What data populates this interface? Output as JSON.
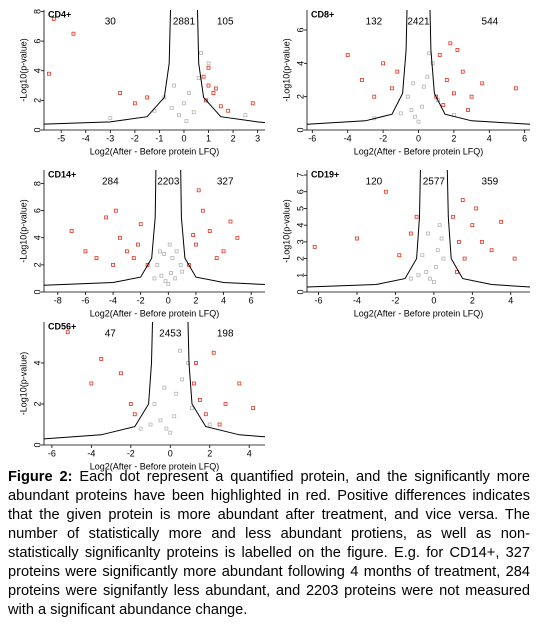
{
  "chart_data": [
    {
      "type": "scatter",
      "title": "CD4+",
      "xlabel": "Log2(After - Before protein LFQ)",
      "ylabel": "-Log10(p-value)",
      "annotations": [
        30,
        2881,
        105
      ],
      "xlim": [
        -5.7,
        3.3
      ],
      "ylim": [
        0,
        8.1
      ],
      "xticks": [
        -5,
        -4,
        -3,
        -2,
        -1,
        0,
        1,
        2,
        3
      ],
      "yticks": [
        0,
        2,
        4,
        6,
        8
      ],
      "series": [
        {
          "color": "#b4b4b4",
          "x": [
            -0.5,
            0.2,
            -0.2,
            0.6,
            -0.8,
            0.4,
            1.0,
            -1.2,
            0.9,
            2.5,
            -3.0,
            0.1,
            -0.4,
            0.7,
            0.0
          ],
          "values": [
            1.5,
            2.5,
            1.0,
            3.5,
            2.2,
            1.2,
            4.5,
            1.3,
            2.0,
            1.0,
            0.8,
            0.6,
            3.0,
            5.2,
            1.8
          ]
        },
        {
          "color": "#e0301e",
          "x": [
            -5.3,
            -4.5,
            -5.5,
            -2.6,
            -2.0,
            -1.5,
            1.0,
            1.2,
            0.9,
            1.5,
            2.8,
            1.8,
            1.0,
            0.8,
            1.3
          ],
          "values": [
            7.5,
            6.5,
            3.8,
            2.5,
            1.8,
            2.2,
            3.0,
            2.5,
            2.0,
            1.6,
            1.8,
            1.3,
            4.2,
            3.6,
            2.8
          ]
        }
      ],
      "curves": [
        {
          "x": [
            -5.7,
            -3.0,
            -1.5,
            -0.8,
            -0.6,
            -0.55
          ],
          "values": [
            0.4,
            0.55,
            0.9,
            2.2,
            4.5,
            8.1
          ]
        },
        {
          "x": [
            0.55,
            0.6,
            0.8,
            1.5,
            3.0,
            3.3
          ],
          "values": [
            8.1,
            4.5,
            2.2,
            0.9,
            0.55,
            0.5
          ]
        }
      ]
    },
    {
      "type": "scatter",
      "title": "CD8+",
      "xlabel": "Log2(After - Before protein LFQ)",
      "ylabel": "-Log10(p-value)",
      "annotations": [
        132,
        2421,
        544
      ],
      "xlim": [
        -6.3,
        6.3
      ],
      "ylim": [
        0,
        7.2
      ],
      "xticks": [
        -6,
        -4,
        -2,
        0,
        2,
        4,
        6
      ],
      "yticks": [
        0,
        2,
        4,
        6
      ],
      "series": [
        {
          "color": "#b4b4b4",
          "x": [
            -0.4,
            0.3,
            -0.2,
            0.5,
            -0.6,
            0.2,
            0.8,
            -1.0,
            1.1,
            2.0,
            -2.5,
            0.0,
            -0.3,
            0.6
          ],
          "values": [
            1.2,
            2.6,
            0.8,
            3.2,
            2.0,
            1.4,
            4.0,
            1.0,
            1.8,
            0.9,
            0.7,
            0.5,
            2.8,
            4.6
          ]
        },
        {
          "color": "#e0301e",
          "x": [
            -4.0,
            -3.2,
            -2.0,
            -1.5,
            -2.5,
            -1.2,
            1.2,
            1.6,
            2.0,
            2.5,
            3.0,
            1.4,
            2.2,
            3.6,
            5.5,
            1.8,
            2.8,
            1.0
          ],
          "values": [
            4.5,
            3.0,
            4.0,
            2.5,
            2.0,
            3.5,
            4.5,
            3.0,
            2.2,
            3.5,
            2.0,
            1.5,
            4.8,
            2.8,
            2.5,
            5.2,
            1.2,
            2.0
          ]
        }
      ],
      "curves": [
        {
          "x": [
            -6.3,
            -3.0,
            -1.5,
            -0.9,
            -0.7,
            -0.65
          ],
          "values": [
            0.35,
            0.55,
            0.95,
            2.2,
            4.8,
            7.2
          ]
        },
        {
          "x": [
            0.65,
            0.7,
            0.9,
            1.5,
            3.0,
            6.3
          ],
          "values": [
            7.2,
            4.8,
            2.2,
            0.95,
            0.55,
            0.35
          ]
        }
      ]
    },
    {
      "type": "scatter",
      "title": "CD14+",
      "xlabel": "Log2(After - Before protein LFQ)",
      "ylabel": "-Log10(p-value)",
      "annotations": [
        284,
        2203,
        327
      ],
      "xlim": [
        -9,
        7
      ],
      "ylim": [
        0,
        9
      ],
      "xticks": [
        -8,
        -6,
        -4,
        -2,
        0,
        2,
        4,
        6
      ],
      "yticks": [
        0,
        2,
        4,
        6,
        8
      ],
      "series": [
        {
          "color": "#b4b4b4",
          "x": [
            -0.5,
            0.3,
            -0.2,
            0.6,
            -0.8,
            0.2,
            0.9,
            -1.0,
            1.0,
            0.0,
            -0.3,
            0.5,
            -0.6,
            0.1
          ],
          "values": [
            1.2,
            2.5,
            0.8,
            3.0,
            2.0,
            1.4,
            2.0,
            1.0,
            1.5,
            0.6,
            2.8,
            1.0,
            3.0,
            3.5
          ]
        },
        {
          "color": "#e0301e",
          "x": [
            -7.0,
            -6.0,
            -4.5,
            -3.5,
            -3.0,
            -2.5,
            -2.0,
            -1.5,
            -4.0,
            -5.2,
            -3.8,
            -2.2,
            1.5,
            2.0,
            2.5,
            3.0,
            4.0,
            4.5,
            1.8,
            3.5,
            2.2,
            5.0
          ],
          "values": [
            4.5,
            3.0,
            5.5,
            4.0,
            3.0,
            2.5,
            5.0,
            2.0,
            2.0,
            2.5,
            6.0,
            3.5,
            2.0,
            3.5,
            6.0,
            4.5,
            3.0,
            5.2,
            4.2,
            2.5,
            7.5,
            4.0
          ]
        }
      ],
      "curves": [
        {
          "x": [
            -9,
            -4.0,
            -2.0,
            -1.2,
            -0.95,
            -0.9
          ],
          "values": [
            0.5,
            0.7,
            1.1,
            2.5,
            5.5,
            9
          ]
        },
        {
          "x": [
            0.9,
            0.95,
            1.2,
            2.0,
            4.0,
            7.0
          ],
          "values": [
            9,
            5.5,
            2.5,
            1.1,
            0.7,
            0.55
          ]
        }
      ]
    },
    {
      "type": "scatter",
      "title": "CD19+",
      "xlabel": "Log2(After - Before protein LFQ)",
      "ylabel": "-Log10(p-value)",
      "annotations": [
        120,
        2577,
        359
      ],
      "xlim": [
        -6.6,
        5
      ],
      "ylim": [
        0,
        7.3
      ],
      "xticks": [
        -6,
        -4,
        -2,
        0,
        2,
        4
      ],
      "yticks": [
        0,
        1,
        2,
        3,
        4,
        5,
        6,
        7
      ],
      "series": [
        {
          "color": "#b4b4b4",
          "x": [
            -0.4,
            0.2,
            -0.2,
            0.4,
            -0.6,
            0.1,
            0.5,
            -0.8,
            0.0,
            -0.3,
            0.3,
            -1.2
          ],
          "values": [
            1.2,
            2.5,
            0.8,
            3.2,
            2.2,
            1.5,
            2.0,
            1.0,
            0.6,
            3.5,
            4.0,
            0.8
          ]
        },
        {
          "color": "#e0301e",
          "x": [
            -6.2,
            -4.0,
            -2.5,
            -1.2,
            -0.9,
            -1.8,
            1.0,
            1.3,
            1.6,
            2.0,
            2.5,
            3.0,
            1.2,
            2.2,
            4.2,
            1.5,
            3.5
          ],
          "values": [
            2.7,
            3.2,
            6.0,
            3.5,
            4.5,
            2.2,
            4.5,
            3.0,
            2.0,
            4.0,
            3.0,
            2.5,
            1.2,
            5.0,
            2.0,
            5.5,
            4.2
          ]
        }
      ],
      "curves": [
        {
          "x": [
            -6.6,
            -3.0,
            -1.5,
            -0.9,
            -0.75,
            -0.7
          ],
          "values": [
            0.3,
            0.45,
            0.8,
            2.0,
            4.5,
            7.3
          ]
        },
        {
          "x": [
            0.7,
            0.75,
            0.9,
            1.5,
            3.0,
            5.0
          ],
          "values": [
            7.3,
            4.5,
            2.0,
            0.8,
            0.45,
            0.3
          ]
        }
      ]
    },
    {
      "type": "scatter",
      "title": "CD56+",
      "xlabel": "Log2(After - Before protein LFQ)",
      "ylabel": "-Log10(p-value)",
      "annotations": [
        47,
        2453,
        198
      ],
      "xlim": [
        -6.4,
        4.8
      ],
      "ylim": [
        0,
        6
      ],
      "xticks": [
        -6,
        -4,
        -2,
        0,
        2,
        4
      ],
      "yticks": [
        0,
        2,
        4
      ],
      "series": [
        {
          "color": "#b4b4b4",
          "x": [
            -0.5,
            0.3,
            -0.2,
            0.6,
            -0.8,
            0.2,
            0.9,
            -1.0,
            1.1,
            0.0,
            -0.3,
            0.5,
            -1.5,
            2.0
          ],
          "values": [
            1.2,
            2.5,
            0.8,
            3.2,
            2.0,
            1.4,
            4.0,
            1.0,
            1.8,
            0.6,
            2.8,
            4.6,
            0.8,
            1.0
          ]
        },
        {
          "color": "#e0301e",
          "x": [
            -5.2,
            -3.5,
            -2.5,
            -2.0,
            -1.8,
            -4.0,
            1.2,
            1.5,
            1.8,
            2.2,
            2.8,
            3.5,
            1.3,
            2.5,
            4.2
          ],
          "values": [
            5.5,
            4.2,
            3.5,
            2.0,
            1.5,
            3.0,
            3.0,
            2.2,
            1.5,
            4.5,
            2.0,
            3.0,
            4.0,
            1.0,
            1.8
          ]
        }
      ],
      "curves": [
        {
          "x": [
            -6.4,
            -3.5,
            -1.8,
            -1.1,
            -0.95,
            -0.9
          ],
          "values": [
            0.3,
            0.5,
            0.9,
            2.0,
            4.0,
            6
          ]
        },
        {
          "x": [
            0.9,
            0.95,
            1.1,
            1.8,
            3.5,
            4.8
          ],
          "values": [
            6,
            4.0,
            2.0,
            0.9,
            0.5,
            0.4
          ]
        }
      ]
    }
  ],
  "caption": {
    "label": "Figure 2:",
    "text": "Each dot represent a quantified protein, and the significantly more abundant proteins have been highlighted in red. Positive differences indicates that the given protein is more abundant after treatment, and vice versa. The number of statistically more and less abundant protiens, as well as non-statistically significanlty proteins is labelled on the figure. E.g. for CD14+, 327 proteins were significantly more abundant following 4 months of treatment, 284 proteins were signifantly less abundant, and 2203 proteins were not measured with a significant abundance change."
  }
}
